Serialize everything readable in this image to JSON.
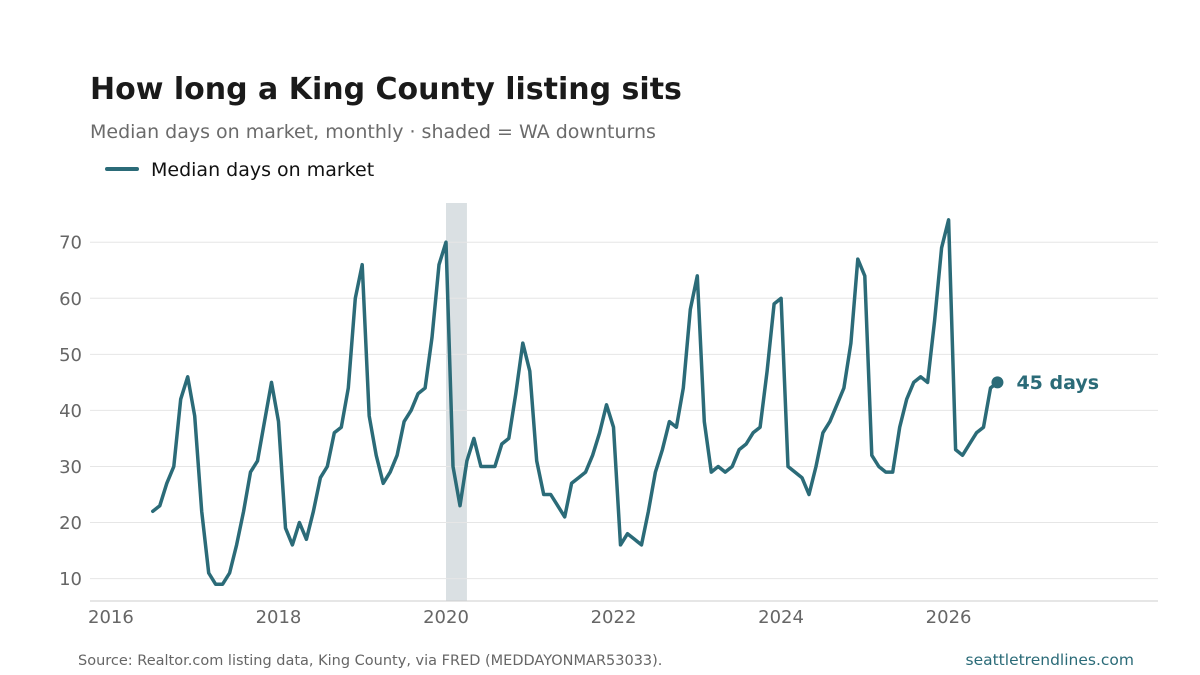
{
  "header": {
    "title": "How long a King County listing sits",
    "subtitle": "Median days on market, monthly · shaded = WA downturns"
  },
  "legend": {
    "label": "Median days on market"
  },
  "footer": {
    "source": "Source: Realtor.com listing data, King County, via FRED (MEDDAYONMAR53033).",
    "brand": "seattletrendlines.com"
  },
  "colors": {
    "line": "#2b6b78",
    "shade": "#dae0e3",
    "grid": "#e6e6e6",
    "axis": "#cccccc"
  },
  "chart_data": {
    "type": "line",
    "title": "How long a King County listing sits",
    "subtitle": "Median days on market, monthly · shaded = WA downturns",
    "xlabel": "",
    "ylabel": "",
    "x_ticks": [
      "2016",
      "2018",
      "2020",
      "2022",
      "2024",
      "2026"
    ],
    "y_ticks": [
      10,
      20,
      30,
      40,
      50,
      60,
      70
    ],
    "ylim": [
      6,
      77
    ],
    "xlim": [
      "2015-10",
      "2028-07"
    ],
    "grid": "horizontal",
    "legend_position": "top-left",
    "shaded_periods": [
      {
        "start": "2020-01",
        "end": "2020-04"
      }
    ],
    "end_label": "45 days",
    "series": [
      {
        "name": "Median days on market",
        "x": [
          "2016-07",
          "2016-08",
          "2016-09",
          "2016-10",
          "2016-11",
          "2016-12",
          "2017-01",
          "2017-02",
          "2017-03",
          "2017-04",
          "2017-05",
          "2017-06",
          "2017-07",
          "2017-08",
          "2017-09",
          "2017-10",
          "2017-11",
          "2017-12",
          "2018-01",
          "2018-02",
          "2018-03",
          "2018-04",
          "2018-05",
          "2018-06",
          "2018-07",
          "2018-08",
          "2018-09",
          "2018-10",
          "2018-11",
          "2018-12",
          "2019-01",
          "2019-02",
          "2019-03",
          "2019-04",
          "2019-05",
          "2019-06",
          "2019-07",
          "2019-08",
          "2019-09",
          "2019-10",
          "2019-11",
          "2019-12",
          "2020-01",
          "2020-02",
          "2020-03",
          "2020-04",
          "2020-05",
          "2020-06",
          "2020-07",
          "2020-08",
          "2020-09",
          "2020-10",
          "2020-11",
          "2020-12",
          "2021-01",
          "2021-02",
          "2021-03",
          "2021-04",
          "2021-05",
          "2021-06",
          "2021-07",
          "2021-08",
          "2021-09",
          "2021-10",
          "2021-11",
          "2021-12",
          "2022-01",
          "2022-02",
          "2022-03",
          "2022-04",
          "2022-05",
          "2022-06",
          "2022-07",
          "2022-08",
          "2022-09",
          "2022-10",
          "2022-11",
          "2022-12",
          "2023-01",
          "2023-02",
          "2023-03",
          "2023-04",
          "2023-05",
          "2023-06",
          "2023-07",
          "2023-08",
          "2023-09",
          "2023-10",
          "2023-11",
          "2023-12",
          "2024-01",
          "2024-02",
          "2024-03",
          "2024-04",
          "2024-05",
          "2024-06",
          "2024-07",
          "2024-08",
          "2024-09",
          "2024-10",
          "2024-11",
          "2024-12",
          "2025-01",
          "2025-02",
          "2025-03",
          "2025-04",
          "2025-05",
          "2025-06",
          "2025-07",
          "2025-08",
          "2025-09",
          "2025-10",
          "2025-11",
          "2025-12",
          "2026-01",
          "2026-02",
          "2026-03",
          "2026-04",
          "2026-05",
          "2026-06",
          "2026-07",
          "2026-08"
        ],
        "values": [
          22,
          23,
          27,
          30,
          42,
          46,
          39,
          22,
          11,
          9,
          9,
          11,
          16,
          22,
          29,
          31,
          38,
          45,
          38,
          19,
          16,
          20,
          17,
          22,
          28,
          30,
          36,
          37,
          44,
          60,
          66,
          39,
          32,
          27,
          29,
          32,
          38,
          40,
          43,
          44,
          53,
          66,
          70,
          30,
          23,
          31,
          35,
          30,
          30,
          30,
          34,
          35,
          43,
          52,
          47,
          31,
          25,
          25,
          23,
          21,
          27,
          28,
          29,
          32,
          36,
          41,
          37,
          16,
          18,
          17,
          16,
          22,
          29,
          33,
          38,
          37,
          44,
          58,
          64,
          38,
          29,
          30,
          29,
          30,
          33,
          34,
          36,
          37,
          47,
          59,
          60,
          30,
          29,
          28,
          25,
          30,
          36,
          38,
          41,
          44,
          52,
          67,
          64,
          32,
          30,
          29,
          29,
          37,
          42,
          45,
          46,
          45,
          56,
          69,
          74,
          33,
          32,
          34,
          36,
          37,
          44,
          45
        ]
      }
    ]
  }
}
